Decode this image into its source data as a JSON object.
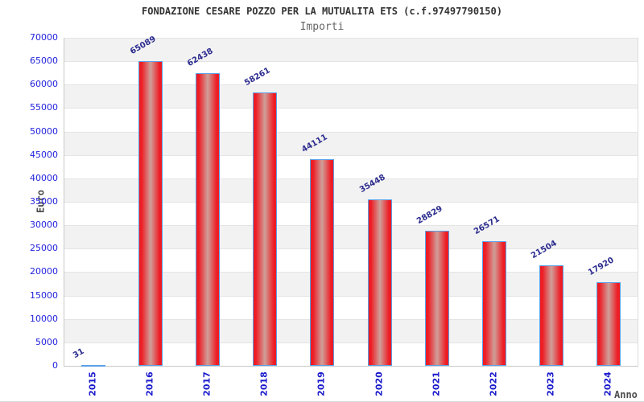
{
  "header": {
    "title": "FONDAZIONE CESARE POZZO PER LA MUTUALITA ETS (c.f.97497790150)",
    "subtitle": "Importi"
  },
  "chart_data": {
    "type": "bar",
    "title": "FONDAZIONE CESARE POZZO PER LA MUTUALITA ETS (c.f.97497790150)",
    "subtitle": "Importi",
    "categories": [
      "2015",
      "2016",
      "2017",
      "2018",
      "2019",
      "2020",
      "2021",
      "2022",
      "2023",
      "2024"
    ],
    "values": [
      31,
      65089,
      62438,
      58261,
      44111,
      35448,
      28829,
      26571,
      21504,
      17920
    ],
    "xlabel": "Anno",
    "ylabel": "Euro",
    "ylim": [
      0,
      70000
    ],
    "ytick_step": 5000,
    "grid": true,
    "legend": "none",
    "colors": {
      "bar_edge": "#ee1c24",
      "bar_center": "#cfa09a",
      "bar_border": "#5aa0e6",
      "band": "#f2f2f2",
      "gridline": "#e4e4e4",
      "ytick_text": "#2222dd",
      "xtick_text": "#1a1acc",
      "bar_label_text": "#2b2b8f",
      "title_text": "#333333",
      "subtitle_text": "#666666",
      "axis_label_text": "#4d4d4d"
    }
  }
}
